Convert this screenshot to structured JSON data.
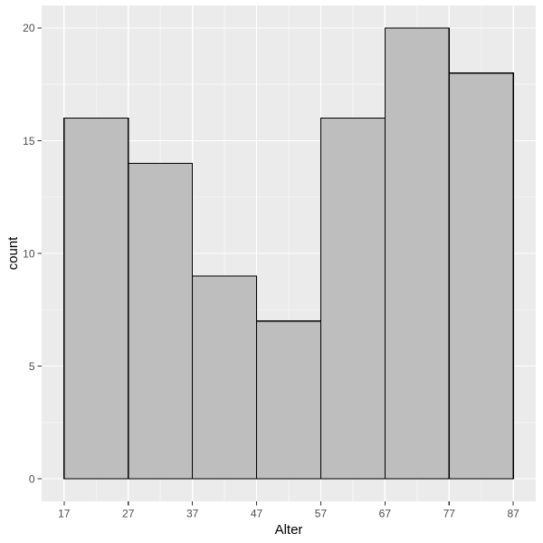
{
  "figure": {
    "background": "#FFFFFF"
  },
  "chart_data": {
    "type": "bar",
    "subtype": "histogram",
    "title": "",
    "xlabel": "Alter",
    "ylabel": "count",
    "bin_edges": [
      17,
      27,
      37,
      47,
      57,
      67,
      77,
      87
    ],
    "counts": [
      16,
      14,
      9,
      7,
      16,
      20,
      18
    ],
    "x_ticks": [
      17,
      27,
      37,
      47,
      57,
      67,
      77,
      87
    ],
    "x_tick_labels": [
      "17",
      "27",
      "37",
      "47",
      "57",
      "67",
      "77",
      "87"
    ],
    "y_ticks": [
      0,
      5,
      10,
      15,
      20
    ],
    "y_tick_labels": [
      "0",
      "5",
      "10",
      "15",
      "20"
    ],
    "x_minor_breaks": [
      22,
      32,
      42,
      52,
      62,
      72,
      82
    ],
    "y_minor_breaks": [
      2.5,
      7.5,
      12.5,
      17.5
    ],
    "xlim": [
      17,
      87
    ],
    "ylim": [
      0,
      20
    ],
    "expand_mult": 0.05,
    "grid": "on",
    "legend": "none",
    "colors": {
      "panel_background": "#EBEBEB",
      "grid_major": "#FFFFFF",
      "grid_minor": "#F7F7F7",
      "bar_fill": "#BEBEBE",
      "bar_border": "#000000",
      "tick_label": "#4D4D4D",
      "tick_mark": "#333333",
      "axis_title": "#000000"
    }
  }
}
